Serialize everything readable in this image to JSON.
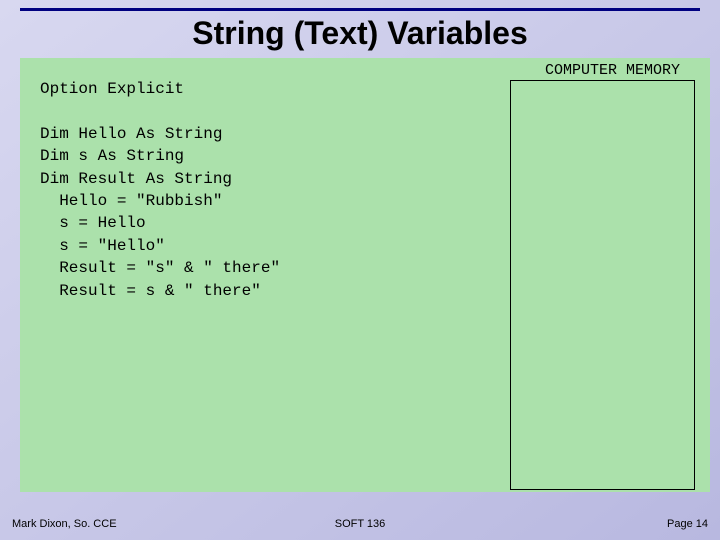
{
  "title": "String (Text) Variables",
  "memory_label": "COMPUTER MEMORY",
  "code": "Option Explicit\n\nDim Hello As String\nDim s As String\nDim Result As String\n  Hello = \"Rubbish\"\n  s = Hello\n  s = \"Hello\"\n  Result = \"s\" & \" there\"\n  Result = s & \" there\"",
  "footer": {
    "left": "Mark Dixon, So. CCE",
    "center": "SOFT 136",
    "right": "Page 14"
  },
  "colors": {
    "header_rule": "#000080",
    "green_bg": "#abe1ab",
    "gradient_start": "#d8d8f0",
    "gradient_end": "#b8b8e0"
  }
}
